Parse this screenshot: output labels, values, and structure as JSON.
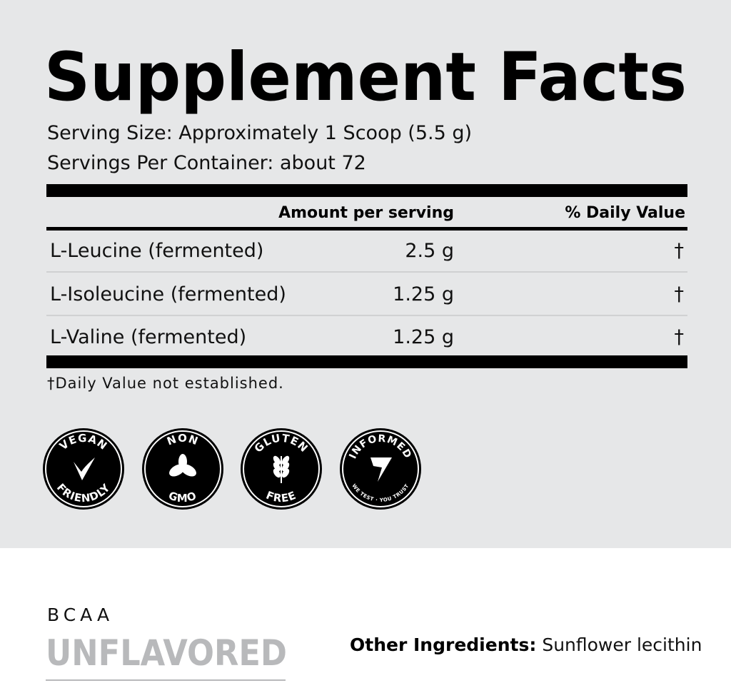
{
  "title": "Supplement Facts",
  "serving_size": "Serving Size: Approximately 1 Scoop (5.5 g)",
  "servings_per_container": "Servings Per Container: about 72",
  "table": {
    "header": [
      "Amount per serving",
      "% Daily Value"
    ],
    "rows": [
      [
        "L-Leucine (fermented)",
        "2.5 g",
        "†"
      ],
      [
        "L-Isoleucine (fermented)",
        "1.25 g",
        "†"
      ],
      [
        "L-Valine (fermented)",
        "1.25 g",
        "†"
      ]
    ]
  },
  "footnote": "†Daily Value not established.",
  "badges": [
    {
      "top": "VEGAN",
      "bottom": "FRIENDLY"
    },
    {
      "top": "NON",
      "bottom": "GMO"
    },
    {
      "top": "GLUTEN",
      "bottom": "FREE"
    },
    {
      "top": "INFORMED",
      "bottom": "WE TEST · YOU TRUST"
    }
  ],
  "product": {
    "name": "BCAA",
    "flavor": "UNFLAVORED"
  },
  "other_ingredients": {
    "label": "Other Ingredients:",
    "text": "Sunflower lecithin"
  }
}
